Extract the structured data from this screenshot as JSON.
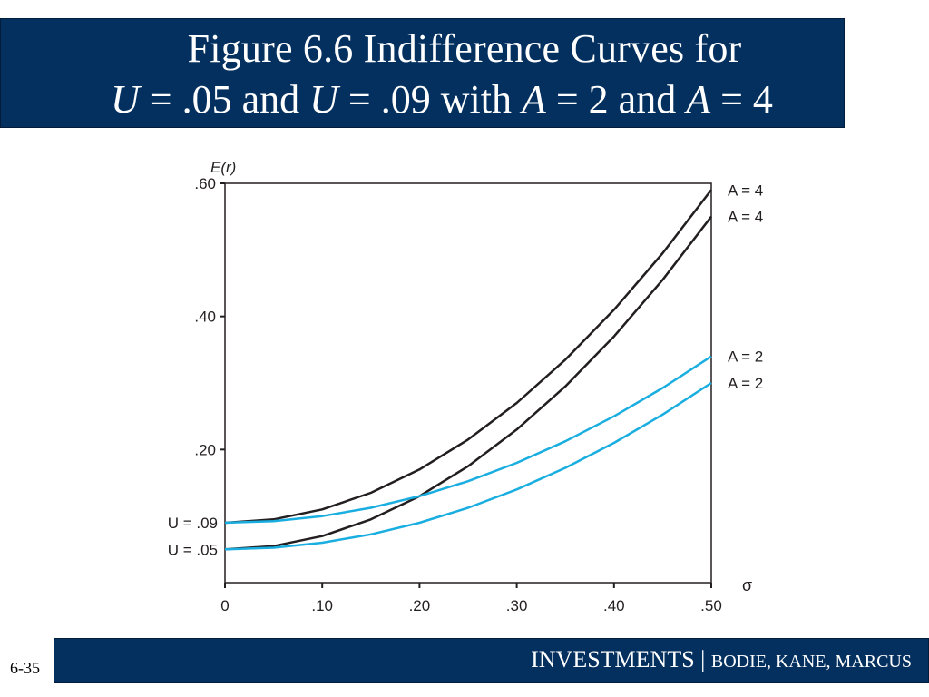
{
  "header": {
    "title_line1": "Figure 6.6 Indifference Curves for",
    "title_line2": {
      "u1_var": "U",
      "u1_rest": " = .05 and ",
      "u2_var": "U",
      "u2_rest": " = .09 with ",
      "a1_var": "A",
      "a1_rest": " = 2 and ",
      "a2_var": "A",
      "a2_rest": " = 4"
    }
  },
  "footer": {
    "brand": "INVESTMENTS | ",
    "authors": "BODIE, KANE, MARCUS",
    "page_number": "6-35"
  },
  "chart_data": {
    "type": "line",
    "ylabel": "E(r)",
    "xlabel": "σ",
    "xlim": [
      0,
      0.5
    ],
    "ylim": [
      0,
      0.6
    ],
    "x_ticks": [
      0,
      0.1,
      0.2,
      0.3,
      0.4,
      0.5
    ],
    "x_tick_labels": [
      "0",
      ".10",
      ".20",
      ".30",
      ".40",
      ".50"
    ],
    "y_ticks": [
      0.2,
      0.4,
      0.6
    ],
    "y_tick_labels": [
      ".20",
      ".40",
      ".60"
    ],
    "y_annotations": [
      {
        "value": 0.09,
        "label": "U = .09"
      },
      {
        "value": 0.05,
        "label": "U = .05"
      }
    ],
    "series": [
      {
        "name": "A = 4",
        "U": 0.09,
        "A": 4,
        "color": "#231f20",
        "x": [
          0,
          0.05,
          0.1,
          0.15,
          0.2,
          0.25,
          0.3,
          0.35,
          0.4,
          0.45,
          0.5
        ],
        "y": [
          0.09,
          0.095,
          0.11,
          0.135,
          0.17,
          0.215,
          0.27,
          0.335,
          0.41,
          0.495,
          0.59
        ]
      },
      {
        "name": "A = 4",
        "U": 0.05,
        "A": 4,
        "color": "#231f20",
        "x": [
          0,
          0.05,
          0.1,
          0.15,
          0.2,
          0.25,
          0.3,
          0.35,
          0.4,
          0.45,
          0.5
        ],
        "y": [
          0.05,
          0.055,
          0.07,
          0.095,
          0.13,
          0.175,
          0.23,
          0.295,
          0.37,
          0.455,
          0.55
        ]
      },
      {
        "name": "A = 2",
        "U": 0.09,
        "A": 2,
        "color": "#1aaee0",
        "x": [
          0,
          0.05,
          0.1,
          0.15,
          0.2,
          0.25,
          0.3,
          0.35,
          0.4,
          0.45,
          0.5
        ],
        "y": [
          0.09,
          0.0925,
          0.1,
          0.1125,
          0.13,
          0.1525,
          0.18,
          0.2125,
          0.25,
          0.2925,
          0.34
        ]
      },
      {
        "name": "A = 2",
        "U": 0.05,
        "A": 2,
        "color": "#1aaee0",
        "x": [
          0,
          0.05,
          0.1,
          0.15,
          0.2,
          0.25,
          0.3,
          0.35,
          0.4,
          0.45,
          0.5
        ],
        "y": [
          0.05,
          0.0525,
          0.06,
          0.0725,
          0.09,
          0.1125,
          0.14,
          0.1725,
          0.21,
          0.2525,
          0.3
        ]
      }
    ],
    "right_labels": [
      "A = 4",
      "A = 4",
      "A = 2",
      "A = 2"
    ],
    "grid": false,
    "legend": "right"
  }
}
